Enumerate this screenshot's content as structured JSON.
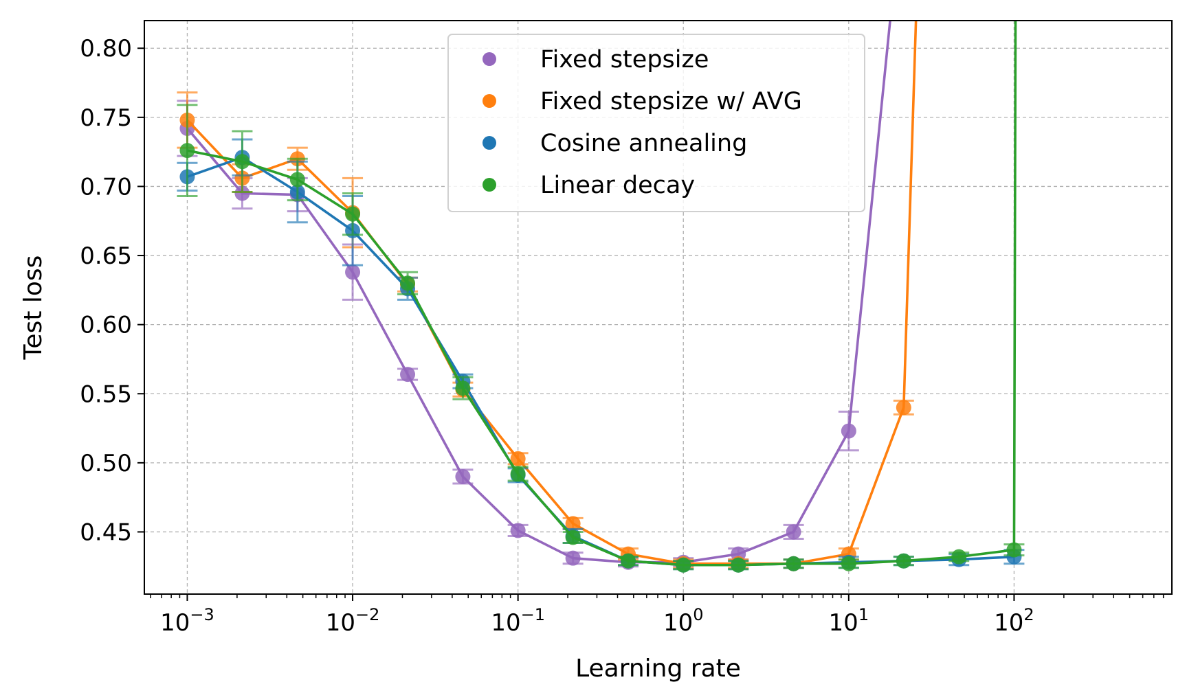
{
  "chart_data": {
    "type": "line",
    "title": "",
    "xlabel": "Learning rate",
    "ylabel": "Test loss",
    "xscale": "log",
    "xlim": [
      0.00055,
      900
    ],
    "ylim": [
      0.405,
      0.82
    ],
    "grid": true,
    "legend_position": "top-center",
    "x_tick_labels": [
      {
        "base": "10",
        "exp": "−3",
        "value": 0.001
      },
      {
        "base": "10",
        "exp": "−2",
        "value": 0.01
      },
      {
        "base": "10",
        "exp": "−1",
        "value": 0.1
      },
      {
        "base": "10",
        "exp": "0",
        "value": 1
      },
      {
        "base": "10",
        "exp": "1",
        "value": 10
      },
      {
        "base": "10",
        "exp": "2",
        "value": 100
      }
    ],
    "y_ticks": [
      0.45,
      0.5,
      0.55,
      0.6,
      0.65,
      0.7,
      0.75,
      0.8
    ],
    "y_tick_labels": [
      "0.45",
      "0.50",
      "0.55",
      "0.60",
      "0.65",
      "0.70",
      "0.75",
      "0.80"
    ],
    "x": [
      0.001,
      0.00215,
      0.00464,
      0.01,
      0.0215,
      0.0464,
      0.1,
      0.215,
      0.464,
      1,
      2.15,
      4.64,
      10,
      21.5,
      46.4,
      100
    ],
    "series": [
      {
        "name": "Fixed stepsize",
        "color": "#9467bd",
        "values": [
          0.742,
          0.695,
          0.694,
          0.638,
          0.564,
          0.49,
          0.451,
          0.431,
          0.428,
          0.428,
          0.434,
          0.45,
          0.523,
          null,
          null,
          null
        ],
        "errors": [
          0.02,
          0.011,
          0.012,
          0.02,
          0.004,
          0.005,
          0.004,
          0.004,
          0.003,
          0.003,
          0.004,
          0.005,
          0.014,
          null,
          null,
          null
        ],
        "divergence": {
          "x": 17.8,
          "y_to": 0.82
        }
      },
      {
        "name": "Fixed stepsize w/ AVG",
        "color": "#ff7f0e",
        "values": [
          0.748,
          0.706,
          0.72,
          0.681,
          0.629,
          0.553,
          0.503,
          0.456,
          0.434,
          0.427,
          0.427,
          0.427,
          0.434,
          0.54,
          null,
          null
        ],
        "errors": [
          0.02,
          0.01,
          0.008,
          0.025,
          0.005,
          0.005,
          0.004,
          0.004,
          0.004,
          0.003,
          0.003,
          0.003,
          0.004,
          0.005,
          null,
          null
        ],
        "divergence": {
          "x": 25.5,
          "y_to": 0.82
        }
      },
      {
        "name": "Cosine annealing",
        "color": "#1f77b4",
        "values": [
          0.707,
          0.721,
          0.696,
          0.668,
          0.626,
          0.559,
          0.491,
          0.447,
          0.429,
          0.426,
          0.426,
          0.427,
          0.428,
          0.429,
          0.43,
          0.432
        ],
        "errors": [
          0.01,
          0.013,
          0.022,
          0.025,
          0.008,
          0.005,
          0.005,
          0.005,
          0.003,
          0.003,
          0.003,
          0.003,
          0.004,
          0.003,
          0.004,
          0.005
        ],
        "divergence": null
      },
      {
        "name": "Linear decay",
        "color": "#2ca02c",
        "values": [
          0.726,
          0.718,
          0.705,
          0.68,
          0.63,
          0.554,
          0.492,
          0.446,
          0.429,
          0.426,
          0.426,
          0.427,
          0.427,
          0.429,
          0.432,
          0.437
        ],
        "errors": [
          0.033,
          0.022,
          0.015,
          0.015,
          0.008,
          0.008,
          0.005,
          0.004,
          0.003,
          0.003,
          0.003,
          0.003,
          0.003,
          0.003,
          0.003,
          0.004
        ],
        "divergence": {
          "x": 102,
          "y_to": 0.82
        }
      }
    ],
    "legend_order": [
      0,
      1,
      2,
      3
    ]
  }
}
